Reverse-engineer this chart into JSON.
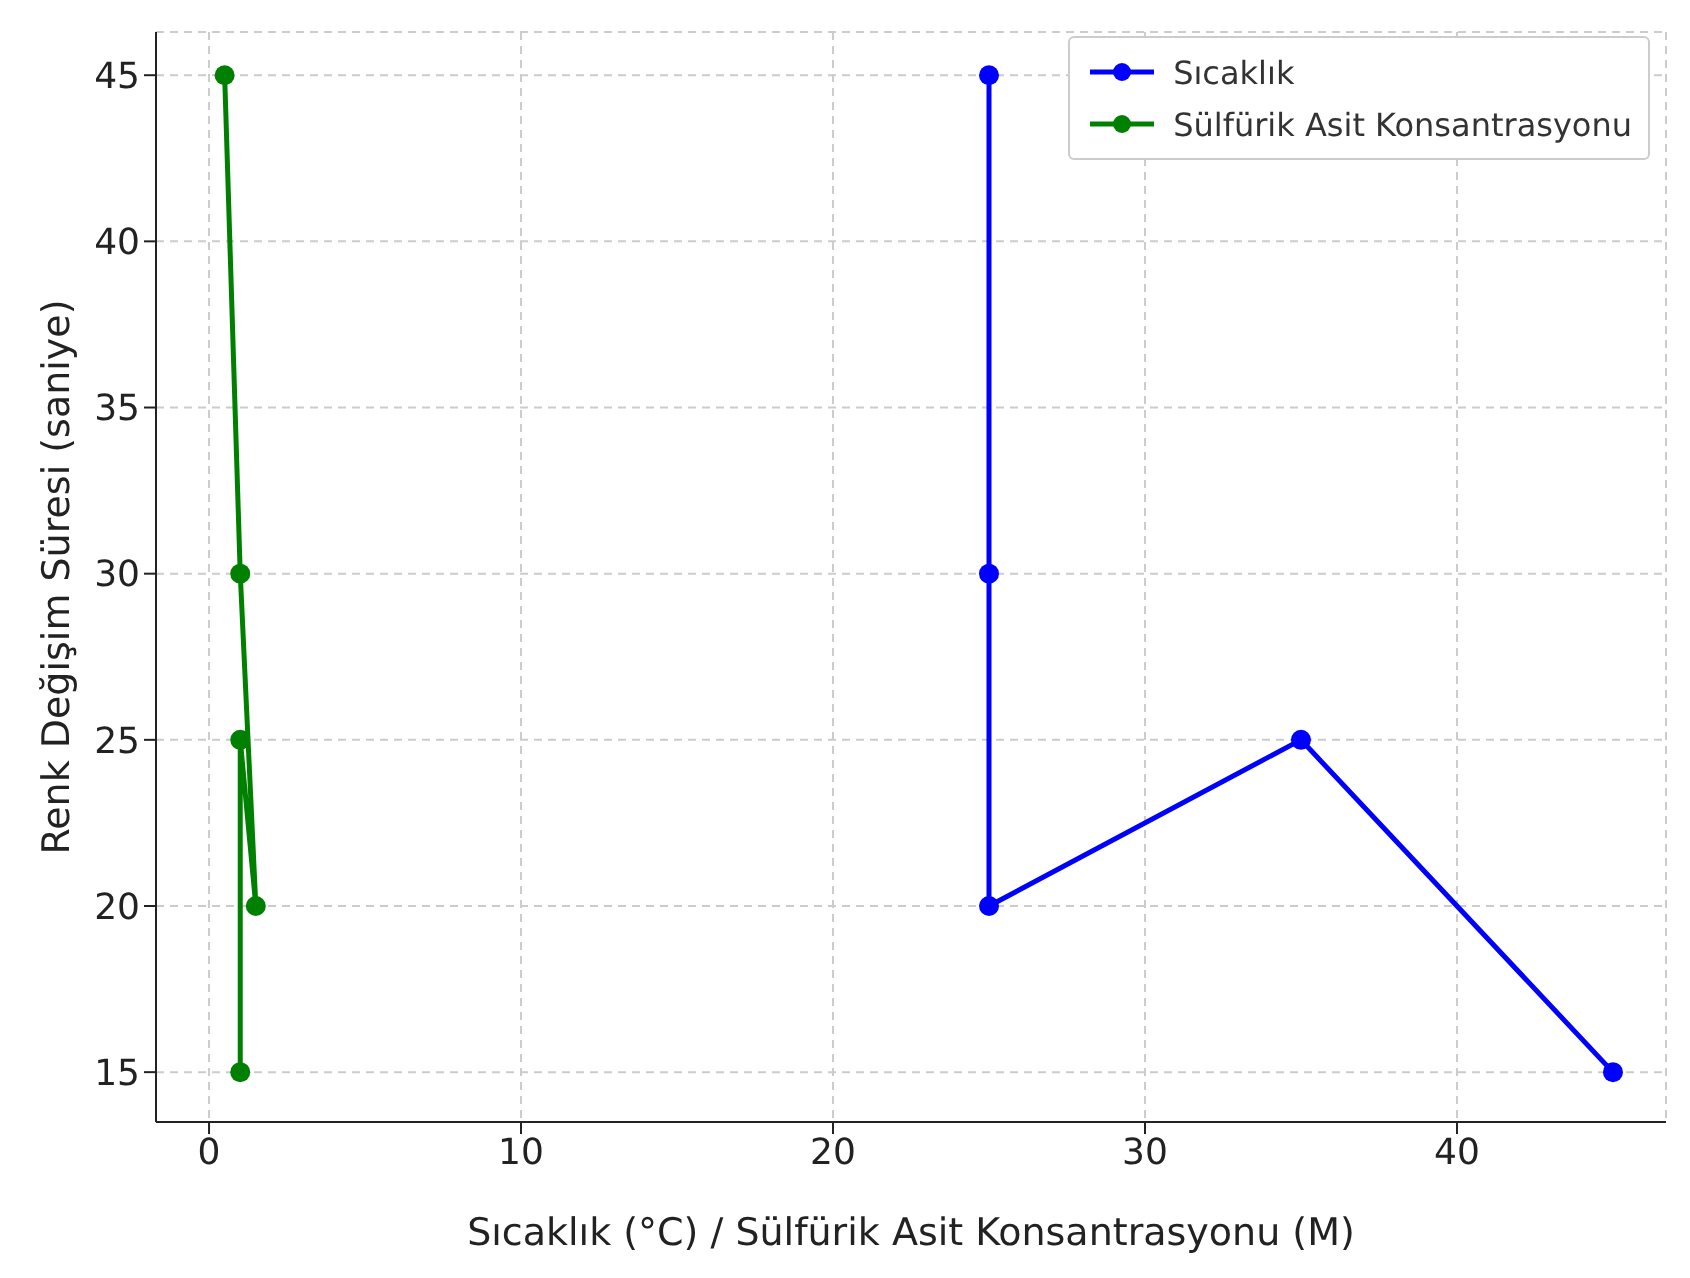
{
  "chart_data": {
    "type": "line",
    "xlabel": "Sıcaklık (°C) / Sülfürik Asit Konsantrasyonu (M)",
    "ylabel": "Renk Değişim Süresi (saniye)",
    "series": [
      {
        "name": "Sıcaklık",
        "color": "#0000ff",
        "x": [
          25,
          25,
          25,
          35,
          45
        ],
        "values": [
          45,
          30,
          20,
          25,
          15
        ]
      },
      {
        "name": "Sülfürik Asit Konsantrasyonu",
        "color": "#008000",
        "x": [
          0.5,
          1,
          1.5,
          1,
          1
        ],
        "values": [
          45,
          30,
          20,
          25,
          15
        ]
      }
    ],
    "xlim": [
      -1.7,
      46.7
    ],
    "xticks": [
      0,
      10,
      20,
      30,
      40
    ],
    "ylim": [
      13.5,
      46.3
    ],
    "yticks": [
      15,
      20,
      25,
      30,
      35,
      40,
      45
    ],
    "grid": true,
    "legend": "top right",
    "marker": "circle",
    "line_style": "solid"
  }
}
